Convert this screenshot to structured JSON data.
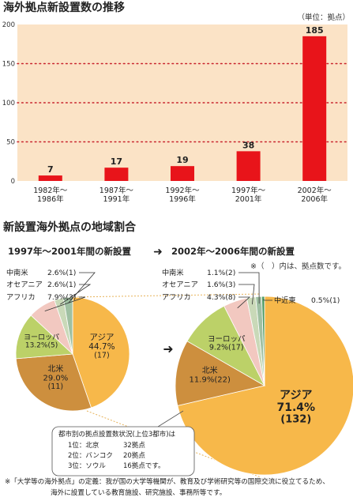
{
  "title": "海外拠点新設置数の推移",
  "unit": "（単位：拠点）",
  "colors": {
    "panel": "#fbe3c6",
    "bar": "#e8141a",
    "grid": "#c8232c",
    "asia": "#f7b84a",
    "na": "#cd8f3e",
    "eu": "#bcd168",
    "af": "#f2c8c0",
    "oc": "#c9d9b8",
    "la": "#9fc0a2",
    "me": "#4e9a63"
  },
  "chart_data": [
    {
      "type": "bar",
      "categories": [
        [
          "1982年～",
          "1986年"
        ],
        [
          "1987年～",
          "1991年"
        ],
        [
          "1992年～",
          "1996年"
        ],
        [
          "1997年～",
          "2001年"
        ],
        [
          "2002年～",
          "2006年"
        ]
      ],
      "values": [
        7,
        17,
        19,
        38,
        185
      ],
      "ylim": [
        0,
        200
      ],
      "yticks": [
        0,
        50,
        100,
        150,
        200
      ],
      "grid": true
    },
    {
      "type": "pie",
      "title": "1997年～2001年間の新設置",
      "labels": [
        "アジア",
        "北米",
        "ヨーロッパ",
        "アフリカ",
        "オセアニア",
        "中南米"
      ],
      "values": [
        44.7,
        29.0,
        13.2,
        7.9,
        2.6,
        2.6
      ],
      "counts": [
        17,
        11,
        5,
        3,
        1,
        1
      ],
      "slice_labels": [
        [
          "アジア",
          "44.7%",
          "(17)"
        ],
        [
          "北米",
          "29.0%",
          "(11)"
        ],
        [
          "ヨーロッパ",
          "13.2%(5)"
        ]
      ],
      "callouts": [
        {
          "name": "中南米",
          "text": "2.6%(1)"
        },
        {
          "name": "オセアニア",
          "text": "2.6%(1)"
        },
        {
          "name": "アフリカ",
          "text": "7.9%(3)"
        }
      ]
    },
    {
      "type": "pie",
      "title": "2002年～2006年間の新設置",
      "labels": [
        "アジア",
        "北米",
        "ヨーロッパ",
        "アフリカ",
        "オセアニア",
        "中南米",
        "中近東"
      ],
      "values": [
        71.4,
        11.9,
        9.2,
        4.3,
        1.6,
        1.1,
        0.5
      ],
      "counts": [
        132,
        22,
        17,
        8,
        3,
        2,
        1
      ],
      "slice_labels": [
        [
          "アジア",
          "71.4%",
          "(132)"
        ],
        [
          "北米",
          "11.9%(22)"
        ],
        [
          "ヨーロッパ",
          "9.2%(17)"
        ]
      ],
      "callouts": [
        {
          "name": "中南米",
          "text": "1.1%(2)"
        },
        {
          "name": "オセアニア",
          "text": "1.6%(3)"
        },
        {
          "name": "アフリカ",
          "text": "4.3%(8)"
        },
        {
          "name": "中近東",
          "text": "0.5%(1)"
        }
      ]
    }
  ],
  "section2": {
    "title": "新設置海外拠点の地域割合",
    "period_from": "1997年～2001年間の新設置",
    "arrow": "➜",
    "period_to": "2002年～2006年間の新設置",
    "note": "※（　）内は、拠点数です。"
  },
  "city_box": {
    "title": "都市別の拠点設置数状況(上位3都市)は",
    "rows": [
      {
        "rank": "1位：北京",
        "count": "32拠点"
      },
      {
        "rank": "2位：バンコク",
        "count": "20拠点"
      },
      {
        "rank": "3位：ソウル",
        "count": "16拠点です。"
      }
    ]
  },
  "footnote": {
    "line1": "※「大学等の海外拠点」の定義：我が国の大学等機関が、教育及び学術研究等の国際交流に役立てるため、",
    "line2": "海外に設置している教育施設、研究施設、事務所等です。"
  }
}
